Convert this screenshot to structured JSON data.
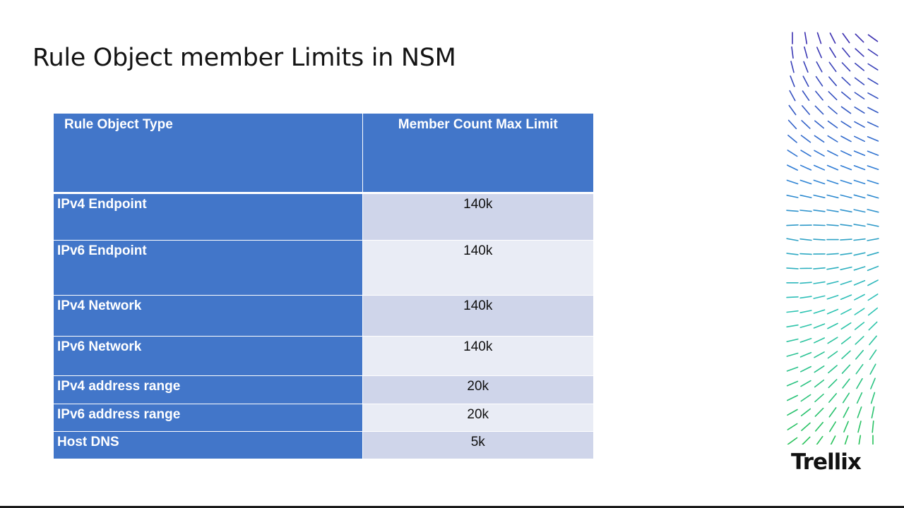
{
  "slide": {
    "title": "Rule Object member Limits in NSM",
    "brand": "Trellix"
  },
  "table": {
    "headers": [
      "Rule Object Type",
      "Member Count Max Limit"
    ],
    "rows": [
      {
        "type": "IPv4 Endpoint",
        "limit": "140k"
      },
      {
        "type": "IPv6 Endpoint",
        "limit": "140k"
      },
      {
        "type": "IPv4 Network",
        "limit": "140k"
      },
      {
        "type": "IPv6 Network",
        "limit": "140k"
      },
      {
        "type": "IPv4 address range",
        "limit": "20k"
      },
      {
        "type": "IPv6 address range",
        "limit": "20k"
      },
      {
        "type": "Host DNS",
        "limit": "5k"
      }
    ]
  },
  "colors": {
    "header_fill": "#4276c9",
    "row_fill_dark": "#cfd5ea",
    "row_fill_light": "#e9ecf5",
    "decor_gradient": [
      "#3b2fb0",
      "#2f7fd6",
      "#2ec4b6",
      "#27c25a"
    ]
  },
  "decoration": "dash-field-pattern"
}
